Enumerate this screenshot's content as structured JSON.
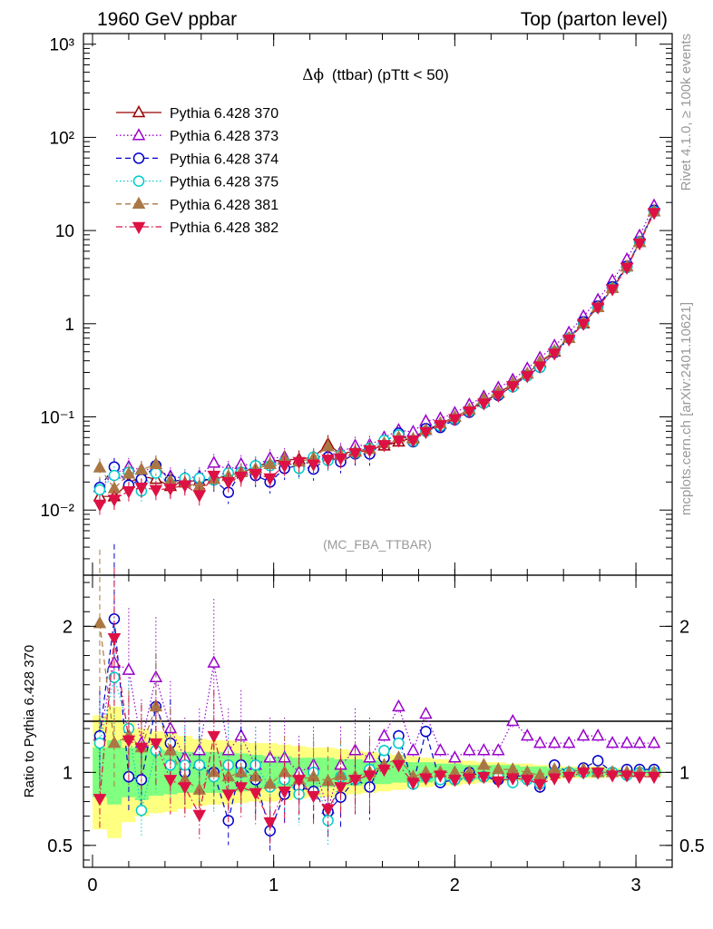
{
  "header": {
    "left": "1960 GeV ppbar",
    "right": "Top (parton level)"
  },
  "side_text": {
    "rivet": "Rivet 4.1.0, ≥ 100k events",
    "mcplots": "mcplots.cern.ch [arXiv:2401.10621]"
  },
  "watermark": "(MC_FBA_TTBAR)",
  "ratio_ylabel": "Ratio to Pythia 6.428 370",
  "colors": {
    "s370": "#990000",
    "s373": "#9900cc",
    "s374": "#0000cc",
    "s375": "#00cccc",
    "s381": "#aa7744",
    "s382": "#dd1144",
    "band_inner": "#80ff80",
    "band_outer": "#ffff80"
  },
  "chart_data": [
    {
      "type": "line",
      "title": "Δϕ (ttbar) (pTtt < 50)",
      "title_parts": {
        "symbol": "Δϕ",
        "rest": "(ttbar) (pTtt < 50)"
      },
      "yscale": "log",
      "xlim": [
        -0.05,
        3.2
      ],
      "ylim": [
        0.002,
        1300
      ],
      "ytick_labels": [
        "10⁻²",
        "10⁻¹",
        "1",
        "10",
        "10²",
        "10³"
      ],
      "legend_position": "top-left",
      "x": [
        0.04,
        0.12,
        0.2,
        0.27,
        0.35,
        0.43,
        0.51,
        0.59,
        0.67,
        0.75,
        0.82,
        0.9,
        0.98,
        1.06,
        1.14,
        1.22,
        1.3,
        1.37,
        1.45,
        1.53,
        1.61,
        1.69,
        1.77,
        1.84,
        1.92,
        2.0,
        2.08,
        2.16,
        2.24,
        2.32,
        2.4,
        2.47,
        2.55,
        2.63,
        2.71,
        2.79,
        2.87,
        2.95,
        3.02,
        3.1
      ],
      "series": [
        {
          "key": "s370",
          "name": "Pythia 6.428 370",
          "marker": "triangle-up-open",
          "dash": "solid",
          "values": [
            0.014,
            0.014,
            0.0195,
            0.023,
            0.0215,
            0.018,
            0.0205,
            0.0205,
            0.0215,
            0.0235,
            0.0255,
            0.0285,
            0.0335,
            0.0345,
            0.035,
            0.037,
            0.051,
            0.04,
            0.043,
            0.045,
            0.049,
            0.054,
            0.06,
            0.072,
            0.084,
            0.1,
            0.12,
            0.145,
            0.18,
            0.225,
            0.29,
            0.38,
            0.5,
            0.7,
            1.0,
            1.5,
            2.4,
            4.1,
            7.5,
            16.0
          ]
        },
        {
          "key": "s373",
          "name": "Pythia 6.428 373",
          "marker": "triangle-up-open",
          "dash": "dotted",
          "values": [
            0.0175,
            0.0245,
            0.029,
            0.027,
            0.0275,
            0.023,
            0.022,
            0.023,
            0.032,
            0.027,
            0.031,
            0.03,
            0.036,
            0.037,
            0.033,
            0.036,
            0.039,
            0.042,
            0.049,
            0.05,
            0.06,
            0.072,
            0.069,
            0.09,
            0.096,
            0.11,
            0.135,
            0.165,
            0.205,
            0.25,
            0.33,
            0.43,
            0.58,
            0.8,
            1.2,
            1.8,
            2.9,
            4.9,
            8.8,
            18.5
          ]
        },
        {
          "key": "s374",
          "name": "Pythia 6.428 374",
          "marker": "circle-open",
          "dash": "dashed",
          "values": [
            0.0175,
            0.029,
            0.0185,
            0.0215,
            0.03,
            0.021,
            0.0205,
            0.0215,
            0.021,
            0.0155,
            0.0255,
            0.0235,
            0.02,
            0.028,
            0.03,
            0.0275,
            0.037,
            0.033,
            0.04,
            0.04,
            0.054,
            0.067,
            0.054,
            0.075,
            0.077,
            0.093,
            0.112,
            0.14,
            0.17,
            0.215,
            0.28,
            0.34,
            0.49,
            0.7,
            1.05,
            1.55,
            2.5,
            4.15,
            7.6,
            16.5
          ]
        },
        {
          "key": "s375",
          "name": "Pythia 6.428 375",
          "marker": "circle-open",
          "dash": "dotted",
          "values": [
            0.0165,
            0.0235,
            0.0255,
            0.016,
            0.025,
            0.019,
            0.022,
            0.022,
            0.021,
            0.025,
            0.0255,
            0.03,
            0.03,
            0.033,
            0.028,
            0.037,
            0.034,
            0.039,
            0.041,
            0.046,
            0.056,
            0.064,
            0.055,
            0.07,
            0.08,
            0.095,
            0.115,
            0.14,
            0.175,
            0.21,
            0.275,
            0.34,
            0.5,
            0.7,
            1.0,
            1.5,
            2.4,
            4.0,
            7.5,
            16.0
          ]
        },
        {
          "key": "s381",
          "name": "Pythia 6.428 381",
          "marker": "triangle-up-filled",
          "dash": "dashed",
          "values": [
            0.0285,
            0.017,
            0.0245,
            0.027,
            0.031,
            0.0205,
            0.0195,
            0.018,
            0.0215,
            0.023,
            0.0255,
            0.0275,
            0.031,
            0.035,
            0.033,
            0.036,
            0.048,
            0.039,
            0.042,
            0.045,
            0.052,
            0.06,
            0.058,
            0.072,
            0.085,
            0.1,
            0.12,
            0.155,
            0.185,
            0.23,
            0.29,
            0.39,
            0.51,
            0.7,
            1.02,
            1.5,
            2.4,
            4.1,
            7.5,
            16.0
          ]
        },
        {
          "key": "s382",
          "name": "Pythia 6.428 382",
          "marker": "triangle-down-filled",
          "dash": "dashdot",
          "values": [
            0.0115,
            0.013,
            0.016,
            0.0175,
            0.0165,
            0.017,
            0.0185,
            0.0145,
            0.0235,
            0.02,
            0.023,
            0.0245,
            0.022,
            0.03,
            0.033,
            0.031,
            0.035,
            0.036,
            0.041,
            0.044,
            0.05,
            0.056,
            0.056,
            0.069,
            0.082,
            0.095,
            0.115,
            0.14,
            0.17,
            0.215,
            0.275,
            0.35,
            0.48,
            0.68,
            1.0,
            1.5,
            2.35,
            4.0,
            7.3,
            15.5
          ]
        }
      ]
    },
    {
      "type": "line",
      "title": "Ratio to Pythia 6.428 370",
      "ylabel": "Ratio to Pythia 6.428 370",
      "xlim": [
        -0.05,
        3.2
      ],
      "ylim": [
        0.35,
        2.35
      ],
      "xticks": [
        0,
        1,
        2,
        3
      ],
      "xtick_labels": [
        "0",
        "1",
        "2",
        "3"
      ],
      "yticks": [
        0.5,
        1,
        2
      ],
      "ytick_labels": [
        "0.5",
        "1",
        "2"
      ],
      "x": [
        0.04,
        0.12,
        0.2,
        0.27,
        0.35,
        0.43,
        0.51,
        0.59,
        0.67,
        0.75,
        0.82,
        0.9,
        0.98,
        1.06,
        1.14,
        1.22,
        1.3,
        1.37,
        1.45,
        1.53,
        1.61,
        1.69,
        1.77,
        1.84,
        1.92,
        2.0,
        2.08,
        2.16,
        2.24,
        2.32,
        2.4,
        2.47,
        2.55,
        2.63,
        2.71,
        2.79,
        2.87,
        2.95,
        3.02,
        3.1
      ],
      "band_inner_halfwidth": [
        0.17,
        0.22,
        0.17,
        0.19,
        0.16,
        0.15,
        0.14,
        0.14,
        0.14,
        0.14,
        0.13,
        0.12,
        0.11,
        0.11,
        0.1,
        0.1,
        0.1,
        0.09,
        0.09,
        0.08,
        0.08,
        0.07,
        0.07,
        0.07,
        0.06,
        0.06,
        0.05,
        0.05,
        0.05,
        0.05,
        0.04,
        0.04,
        0.03,
        0.03,
        0.03,
        0.03,
        0.02,
        0.02,
        0.02,
        0.02
      ],
      "band_outer_halfwidth": [
        0.39,
        0.45,
        0.34,
        0.3,
        0.28,
        0.27,
        0.25,
        0.23,
        0.22,
        0.22,
        0.21,
        0.2,
        0.2,
        0.19,
        0.18,
        0.17,
        0.17,
        0.16,
        0.15,
        0.14,
        0.13,
        0.12,
        0.11,
        0.1,
        0.09,
        0.09,
        0.08,
        0.07,
        0.07,
        0.06,
        0.06,
        0.05,
        0.05,
        0.04,
        0.04,
        0.04,
        0.03,
        0.03,
        0.03,
        0.03
      ],
      "series": [
        {
          "key": "s373",
          "values": [
            1.25,
            1.75,
            1.7,
            1.2,
            1.65,
            1.3,
            1.1,
            1.15,
            1.75,
            1.15,
            1.25,
            1.05,
            1.1,
            1.1,
            1.0,
            1.05,
            0.75,
            1.05,
            1.15,
            1.1,
            1.25,
            1.45,
            1.15,
            1.4,
            1.15,
            1.1,
            1.15,
            1.15,
            1.15,
            1.35,
            1.25,
            1.2,
            1.2,
            1.2,
            1.25,
            1.25,
            1.2,
            1.2,
            1.2,
            1.2
          ]
        },
        {
          "key": "s374",
          "values": [
            1.25,
            2.05,
            0.97,
            0.95,
            1.45,
            1.2,
            1.0,
            1.05,
            1.0,
            0.67,
            1.05,
            0.95,
            0.6,
            0.85,
            0.9,
            0.87,
            0.73,
            0.83,
            0.95,
            0.9,
            1.1,
            1.25,
            0.92,
            1.28,
            0.93,
            0.95,
            1.0,
            0.97,
            0.95,
            0.98,
            0.97,
            0.9,
            1.05,
            1.0,
            1.03,
            1.08,
            1.0,
            1.02,
            1.02,
            1.02
          ]
        },
        {
          "key": "s375",
          "values": [
            1.2,
            1.65,
            1.3,
            0.74,
            1.15,
            1.05,
            1.05,
            1.05,
            0.97,
            1.05,
            1.0,
            1.05,
            0.9,
            0.95,
            0.85,
            1.0,
            0.67,
            0.97,
            0.95,
            1.02,
            1.15,
            1.2,
            0.92,
            0.97,
            0.95,
            0.95,
            0.97,
            0.97,
            0.97,
            0.93,
            0.95,
            0.92,
            1.0,
            1.0,
            1.0,
            1.0,
            1.0,
            0.98,
            1.0,
            1.0
          ]
        },
        {
          "key": "s381",
          "values": [
            2.02,
            1.2,
            1.25,
            1.17,
            1.45,
            1.15,
            0.95,
            0.88,
            1.0,
            0.97,
            1.0,
            0.97,
            0.92,
            1.0,
            0.95,
            0.97,
            0.94,
            0.98,
            0.97,
            1.0,
            1.05,
            1.1,
            0.97,
            1.0,
            1.0,
            1.0,
            1.0,
            1.05,
            1.02,
            1.02,
            1.0,
            0.98,
            1.02,
            1.0,
            1.02,
            1.0,
            1.0,
            1.0,
            1.0,
            1.0
          ]
        },
        {
          "key": "s382",
          "values": [
            0.82,
            1.92,
            1.22,
            1.17,
            1.2,
            0.95,
            0.9,
            0.71,
            1.25,
            0.85,
            0.9,
            0.86,
            0.66,
            0.87,
            0.95,
            0.84,
            0.75,
            0.9,
            0.95,
            0.98,
            1.02,
            1.05,
            0.93,
            0.96,
            0.98,
            0.95,
            0.96,
            0.97,
            0.94,
            0.96,
            0.95,
            0.92,
            0.96,
            0.97,
            1.0,
            1.0,
            0.98,
            0.98,
            0.97,
            0.97
          ]
        }
      ]
    }
  ]
}
